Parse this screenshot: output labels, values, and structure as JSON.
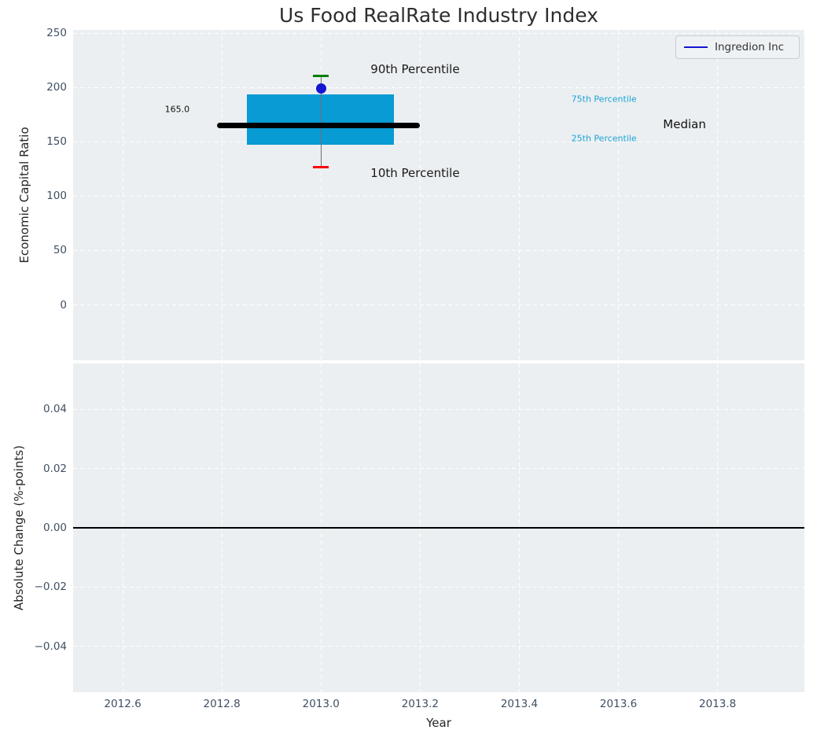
{
  "figure": {
    "background": "#ffffff",
    "axes_background": "#ebeff1",
    "grid_color": "#ffffff",
    "tick_color": "#3e4f63"
  },
  "legend": {
    "label": "Ingredion Inc",
    "line_color": "#1414d2"
  },
  "chart_data": [
    {
      "type": "box",
      "title": "Us Food RealRate Industry Index",
      "ylabel": "Economic Capital Ratio",
      "xlim": [
        2012.5,
        2013.975
      ],
      "ylim": [
        -51,
        253
      ],
      "grid": true,
      "legend_position": "upper right",
      "yticks": [
        {
          "v": 250,
          "label": "250"
        },
        {
          "v": 200,
          "label": "200"
        },
        {
          "v": 150,
          "label": "150"
        },
        {
          "v": 100,
          "label": "100"
        },
        {
          "v": 50,
          "label": "50"
        },
        {
          "v": 0,
          "label": "0"
        }
      ],
      "box": {
        "x": 2013.0,
        "p10": 127,
        "p25": 147,
        "median": 165.0,
        "p75": 194,
        "p90": 211,
        "company_value": 199,
        "box_left": 2012.85,
        "box_right": 2013.147,
        "median_line_left": 2012.79,
        "median_line_right": 2013.2,
        "cap_half_width": 0.016,
        "box_color": "#089bd4",
        "median_color": "#000000",
        "whisker_color": "#6e6e6e",
        "cap90_color": "#008000",
        "cap10_color": "#ff0000",
        "marker_color": "#1414d2"
      },
      "median_value_label": "165.0",
      "annotations": [
        {
          "text": "90th Percentile",
          "x": 2013.1,
          "y": 217,
          "color": "#1a1a1a",
          "size": 15,
          "align": "left"
        },
        {
          "text": "10th Percentile",
          "x": 2013.1,
          "y": 121,
          "color": "#1a1a1a",
          "size": 15,
          "align": "left"
        },
        {
          "text": "165.0",
          "x": 2012.71,
          "y": 180,
          "color": "#111111",
          "size": 11,
          "align": "center"
        },
        {
          "text": "75th Percentile",
          "x": 2013.505,
          "y": 189,
          "color": "#1ca3d8",
          "size": 11,
          "align": "left"
        },
        {
          "text": "25th Percentile",
          "x": 2013.505,
          "y": 153,
          "color": "#1ca3d8",
          "size": 11,
          "align": "left"
        },
        {
          "text": "Median",
          "x": 2013.69,
          "y": 166,
          "color": "#111111",
          "size": 15,
          "align": "left"
        }
      ]
    },
    {
      "type": "line",
      "ylabel": "Absolute Change (%-points)",
      "xlabel": "Year",
      "xlim": [
        2012.5,
        2013.975
      ],
      "ylim": [
        -0.0555,
        0.0555
      ],
      "grid": true,
      "yticks": [
        {
          "v": 0.04,
          "label": "0.04"
        },
        {
          "v": 0.02,
          "label": "0.02"
        },
        {
          "v": 0.0,
          "label": "0.00"
        },
        {
          "v": -0.02,
          "label": "−0.02"
        },
        {
          "v": -0.04,
          "label": "−0.04"
        }
      ],
      "xticks": [
        {
          "v": 2012.6,
          "label": "2012.6"
        },
        {
          "v": 2012.8,
          "label": "2012.8"
        },
        {
          "v": 2013.0,
          "label": "2013.0"
        },
        {
          "v": 2013.2,
          "label": "2013.2"
        },
        {
          "v": 2013.4,
          "label": "2013.4"
        },
        {
          "v": 2013.6,
          "label": "2013.6"
        },
        {
          "v": 2013.8,
          "label": "2013.8"
        }
      ],
      "zero_line": {
        "y": 0.0,
        "color": "#000000"
      }
    }
  ]
}
